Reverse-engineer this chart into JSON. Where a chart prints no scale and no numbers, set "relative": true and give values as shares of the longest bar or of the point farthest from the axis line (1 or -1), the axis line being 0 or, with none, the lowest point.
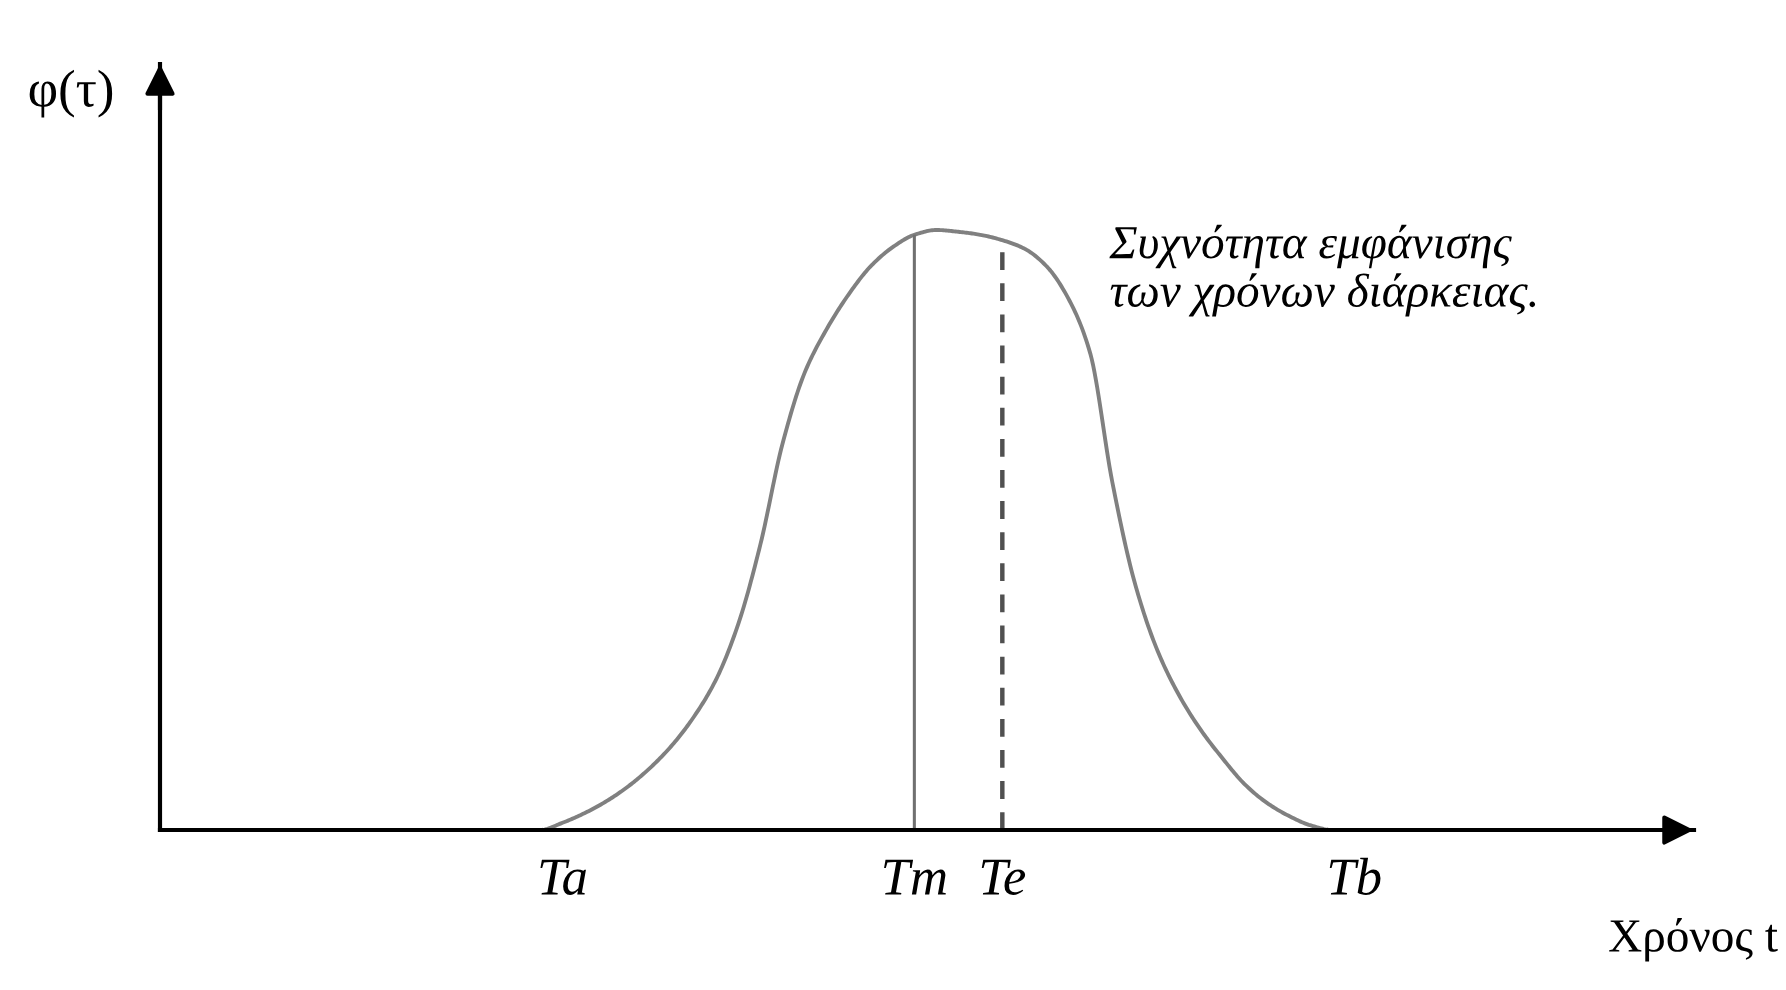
{
  "chart_data": {
    "type": "line",
    "xlabel": "Χρόνος t",
    "ylabel": "φ(τ)",
    "relative": true,
    "tick_labels": "x",
    "color": "#808080",
    "categories": [
      null,
      null,
      null,
      null,
      null,
      null,
      null,
      null,
      null,
      null,
      null,
      null,
      null,
      null,
      null,
      null,
      null,
      null,
      "Ta",
      null,
      null,
      null,
      null,
      null,
      null,
      null,
      null,
      null,
      null,
      null,
      null,
      null,
      null,
      null,
      "Tm",
      null,
      null,
      null,
      "Te",
      null,
      null,
      null,
      null,
      null,
      null,
      null,
      null,
      null,
      null,
      null,
      null,
      null,
      null,
      null,
      "Tb",
      null,
      null,
      null,
      null,
      null,
      null,
      null,
      null,
      null,
      null,
      null,
      null,
      null,
      null,
      null
    ],
    "values": [
      null,
      null,
      null,
      null,
      null,
      null,
      null,
      null,
      null,
      null,
      null,
      null,
      null,
      null,
      null,
      null,
      null,
      0,
      0.012,
      0.028,
      0.048,
      0.073,
      0.104,
      0.142,
      0.19,
      0.252,
      0.344,
      0.476,
      0.643,
      0.761,
      0.834,
      0.892,
      0.939,
      0.971,
      0.992,
      1,
      0.997,
      0.992,
      0.983,
      0.969,
      0.94,
      0.886,
      0.794,
      0.58,
      0.415,
      0.304,
      0.227,
      0.168,
      0.12,
      0.077,
      0.046,
      0.024,
      0.008,
      0,
      null,
      null,
      null,
      null,
      null,
      null,
      null,
      null,
      null,
      null,
      null,
      null,
      null,
      null,
      null,
      null
    ],
    "ref_lines": [
      {
        "axis": "x",
        "value": "Tm",
        "color": "#707070",
        "line_style": "solid"
      },
      {
        "axis": "x",
        "value": "Te",
        "color": "#505050",
        "line_style": "dashed"
      }
    ],
    "annotations": [
      "Συχνότητα εμφάνισης\nτων χρόνων διάρκειας."
    ]
  }
}
